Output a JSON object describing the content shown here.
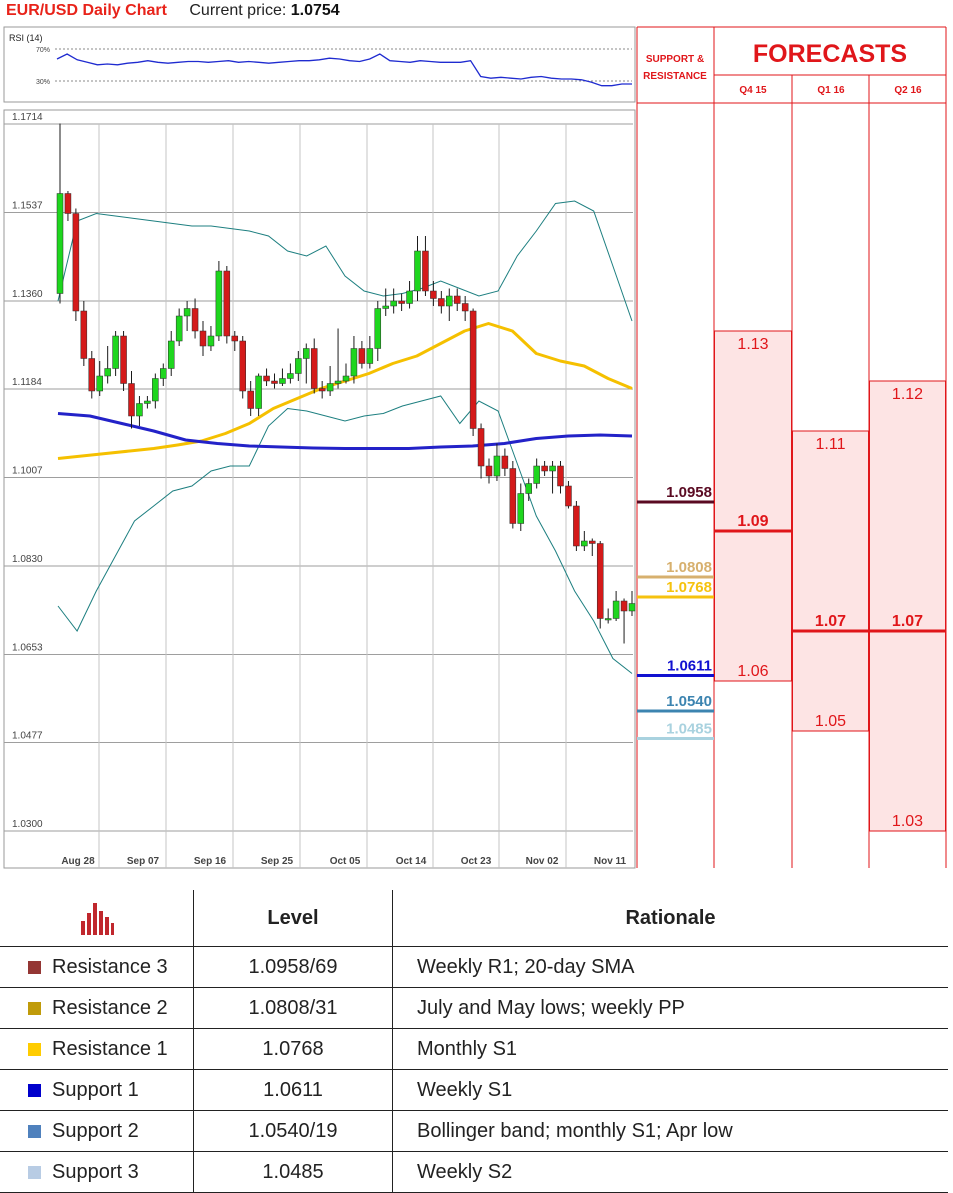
{
  "header": {
    "title": "EUR/USD Daily Chart",
    "price_label": "Current price:",
    "price_value": "1.0754"
  },
  "chart_data": [
    {
      "type": "line",
      "title": "RSI (14)",
      "y_ticks": [
        "70%",
        "30%"
      ],
      "ylim": [
        0,
        100
      ],
      "series": [
        {
          "color": "#1f2bd0",
          "values": [
            62,
            68,
            61,
            58,
            55,
            56,
            55,
            57,
            58,
            60,
            58,
            57,
            58,
            59,
            59,
            58,
            59,
            60,
            58,
            59,
            58,
            57,
            58,
            59,
            60,
            60,
            61,
            63,
            62,
            60,
            59,
            62,
            68,
            60,
            59,
            58,
            60,
            59,
            58,
            58,
            58,
            60,
            41,
            39,
            40,
            39,
            38,
            40,
            41,
            39,
            38,
            38,
            37,
            34,
            30,
            30,
            32,
            32
          ]
        }
      ]
    },
    {
      "type": "candlestick",
      "y_ticks": [
        "1.1714",
        "1.1537",
        "1.1360",
        "1.1184",
        "1.1007",
        "1.0830",
        "1.0653",
        "1.0477",
        "1.0300"
      ],
      "ylim": [
        1.03,
        1.1714
      ],
      "x_ticks": [
        "Aug 28",
        "Sep 07",
        "Sep 16",
        "Sep 25",
        "Oct 05",
        "Oct 14",
        "Oct 23",
        "Nov 02",
        "Nov 11"
      ],
      "bull_color": "#1ed61e",
      "bear_color": "#d41a1a",
      "candles": [
        [
          1.1375,
          1.1575,
          1.1715,
          1.1355
        ],
        [
          1.1575,
          1.1535,
          1.158,
          1.152
        ],
        [
          1.1535,
          1.134,
          1.1545,
          1.132
        ],
        [
          1.134,
          1.1245,
          1.136,
          1.123
        ],
        [
          1.1245,
          1.118,
          1.126,
          1.1165
        ],
        [
          1.118,
          1.121,
          1.124,
          1.117
        ],
        [
          1.121,
          1.1225,
          1.127,
          1.1195
        ],
        [
          1.1225,
          1.129,
          1.13,
          1.121
        ],
        [
          1.129,
          1.1195,
          1.13,
          1.118
        ],
        [
          1.1195,
          1.113,
          1.122,
          1.1105
        ],
        [
          1.113,
          1.1155,
          1.117,
          1.111
        ],
        [
          1.1155,
          1.116,
          1.117,
          1.1145
        ],
        [
          1.116,
          1.1205,
          1.1215,
          1.1145
        ],
        [
          1.1205,
          1.1225,
          1.1235,
          1.119
        ],
        [
          1.1225,
          1.128,
          1.13,
          1.121
        ],
        [
          1.128,
          1.133,
          1.1345,
          1.127
        ],
        [
          1.133,
          1.1345,
          1.136,
          1.13
        ],
        [
          1.1345,
          1.13,
          1.1365,
          1.1285
        ],
        [
          1.13,
          1.127,
          1.132,
          1.125
        ],
        [
          1.127,
          1.129,
          1.131,
          1.126
        ],
        [
          1.129,
          1.142,
          1.144,
          1.128
        ],
        [
          1.142,
          1.129,
          1.143,
          1.1275
        ],
        [
          1.129,
          1.128,
          1.13,
          1.126
        ],
        [
          1.128,
          1.118,
          1.129,
          1.1165
        ],
        [
          1.118,
          1.1145,
          1.12,
          1.113
        ],
        [
          1.1145,
          1.121,
          1.1215,
          1.113
        ],
        [
          1.121,
          1.12,
          1.1225,
          1.119
        ],
        [
          1.12,
          1.1195,
          1.1215,
          1.1185
        ],
        [
          1.1195,
          1.1205,
          1.1225,
          1.119
        ],
        [
          1.1205,
          1.1215,
          1.1235,
          1.1195
        ],
        [
          1.1215,
          1.1245,
          1.126,
          1.12
        ],
        [
          1.1245,
          1.1265,
          1.1275,
          1.1195
        ],
        [
          1.1265,
          1.1185,
          1.1285,
          1.1175
        ],
        [
          1.1185,
          1.118,
          1.12,
          1.1165
        ],
        [
          1.118,
          1.1195,
          1.123,
          1.117
        ],
        [
          1.1195,
          1.12,
          1.1305,
          1.1185
        ],
        [
          1.12,
          1.121,
          1.1235,
          1.1195
        ],
        [
          1.121,
          1.1265,
          1.129,
          1.1195
        ],
        [
          1.1265,
          1.1235,
          1.128,
          1.1225
        ],
        [
          1.1235,
          1.1265,
          1.129,
          1.1225
        ],
        [
          1.1265,
          1.1345,
          1.136,
          1.124
        ],
        [
          1.1345,
          1.135,
          1.1385,
          1.133
        ],
        [
          1.135,
          1.136,
          1.1385,
          1.1335
        ],
        [
          1.136,
          1.1355,
          1.1375,
          1.134
        ],
        [
          1.1355,
          1.138,
          1.14,
          1.1345
        ],
        [
          1.138,
          1.146,
          1.149,
          1.136
        ],
        [
          1.146,
          1.138,
          1.149,
          1.137
        ],
        [
          1.138,
          1.1365,
          1.14,
          1.135
        ],
        [
          1.1365,
          1.135,
          1.138,
          1.1335
        ],
        [
          1.135,
          1.137,
          1.1385,
          1.132
        ],
        [
          1.137,
          1.1355,
          1.1385,
          1.134
        ],
        [
          1.1355,
          1.134,
          1.137,
          1.132
        ],
        [
          1.134,
          1.1105,
          1.1345,
          1.109
        ],
        [
          1.1105,
          1.103,
          1.1115,
          1.1005
        ],
        [
          1.103,
          1.101,
          1.1045,
          1.0995
        ],
        [
          1.101,
          1.105,
          1.1075,
          1.1
        ],
        [
          1.105,
          1.1025,
          1.1065,
          1.101
        ],
        [
          1.1025,
          1.0915,
          1.104,
          1.0905
        ],
        [
          1.0915,
          1.0975,
          1.0995,
          1.09
        ],
        [
          1.0975,
          1.0995,
          1.1005,
          1.096
        ],
        [
          1.0995,
          1.103,
          1.1045,
          1.0985
        ],
        [
          1.103,
          1.102,
          1.104,
          1.101
        ],
        [
          1.102,
          1.103,
          1.104,
          1.0975
        ],
        [
          1.103,
          1.099,
          1.104,
          1.0975
        ],
        [
          1.099,
          1.095,
          1.1,
          1.0945
        ],
        [
          1.095,
          1.087,
          1.096,
          1.086
        ],
        [
          1.087,
          1.088,
          1.09,
          1.086
        ],
        [
          1.088,
          1.0875,
          1.0885,
          1.085
        ],
        [
          1.0875,
          1.0725,
          1.088,
          1.0705
        ],
        [
          1.0725,
          1.0725,
          1.0745,
          1.0715
        ],
        [
          1.0725,
          1.076,
          1.078,
          1.072
        ],
        [
          1.076,
          1.074,
          1.0765,
          1.0675
        ],
        [
          1.074,
          1.0755,
          1.078,
          1.073
        ]
      ],
      "bands": {
        "upper": [
          1.136,
          1.152,
          1.1535,
          1.153,
          1.1525,
          1.152,
          1.1515,
          1.151,
          1.151,
          1.1505,
          1.15,
          1.149,
          1.146,
          1.145,
          1.147,
          1.141,
          1.138,
          1.137,
          1.1375,
          1.1385,
          1.14,
          1.1385,
          1.137,
          1.138,
          1.145,
          1.15,
          1.1555,
          1.156,
          1.154,
          1.143,
          1.132
        ],
        "lower": [
          1.075,
          1.07,
          1.078,
          1.085,
          1.092,
          1.095,
          1.098,
          1.099,
          1.102,
          1.103,
          1.103,
          1.111,
          1.1145,
          1.114,
          1.113,
          1.112,
          1.113,
          1.1135,
          1.115,
          1.116,
          1.117,
          1.1115,
          1.116,
          1.114,
          1.1035,
          1.093,
          1.086,
          1.078,
          1.072,
          1.0645,
          1.0615
        ],
        "band_color": "#1d7f80"
      },
      "moving_averages": [
        {
          "color": "#f5c000",
          "values": [
            1.1045,
            1.105,
            1.1055,
            1.106,
            1.1065,
            1.1072,
            1.108,
            1.1095,
            1.1115,
            1.1145,
            1.1165,
            1.1185,
            1.12,
            1.1215,
            1.1235,
            1.125,
            1.1275,
            1.13,
            1.1315,
            1.13,
            1.1255,
            1.124,
            1.123,
            1.1205,
            1.1185
          ]
        },
        {
          "color": "#2322c8",
          "values": [
            1.1135,
            1.113,
            1.1115,
            1.11,
            1.1082,
            1.1075,
            1.107,
            1.1068,
            1.1066,
            1.1065,
            1.1065,
            1.1065,
            1.1068,
            1.107,
            1.1075,
            1.1085,
            1.109,
            1.1092,
            1.109
          ]
        }
      ]
    },
    {
      "type": "table",
      "title": "FORECASTS",
      "sr_column_label": "SUPPORT & RESISTANCE",
      "columns": [
        "Q4 15",
        "Q1 16",
        "Q2 16"
      ],
      "ranges": [
        {
          "high": "1.13",
          "mid": "1.09",
          "low": "1.06"
        },
        {
          "high": "1.11",
          "mid": "1.07",
          "low": "1.05"
        },
        {
          "high": "1.12",
          "mid": "1.07",
          "low": "1.03"
        }
      ],
      "sr_levels": [
        {
          "label": "1.0958",
          "color": "#5a0a22"
        },
        {
          "label": "1.0808",
          "color": "#d7b06e"
        },
        {
          "label": "1.0768",
          "color": "#f6c20e"
        },
        {
          "label": "1.0611",
          "color": "#1111d0"
        },
        {
          "label": "1.0540",
          "color": "#3c84b0"
        },
        {
          "label": "1.0485",
          "color": "#a9d2df"
        }
      ]
    }
  ],
  "levels_table": {
    "icon": "bar-chart-icon",
    "header_level": "Level",
    "header_rationale": "Rationale",
    "rows": [
      {
        "name": "Resistance 3",
        "level": "1.0958/69",
        "rationale": "Weekly R1; 20-day SMA",
        "color": "#943634"
      },
      {
        "name": "Resistance 2",
        "level": "1.0808/31",
        "rationale": "July and May lows; weekly PP",
        "color": "#c09b0a"
      },
      {
        "name": "Resistance 1",
        "level": "1.0768",
        "rationale": "Monthly S1",
        "color": "#ffcc00"
      },
      {
        "name": "Support 1",
        "level": "1.0611",
        "rationale": "Weekly S1",
        "color": "#0000cc"
      },
      {
        "name": "Support 2",
        "level": "1.0540/19",
        "rationale": "Bollinger band; monthly S1; Apr low",
        "color": "#4f81bd"
      },
      {
        "name": "Support 3",
        "level": "1.0485",
        "rationale": "Weekly S2",
        "color": "#b8cce4"
      }
    ]
  }
}
